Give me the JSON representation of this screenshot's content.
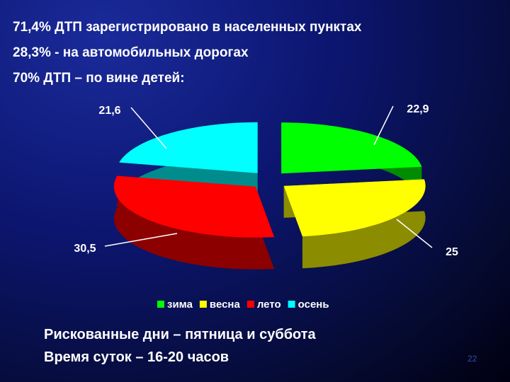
{
  "slide": {
    "lines": [
      "71,4% ДТП зарегистрировано в населенных пунктах",
      "28,3% - на автомобильных дорогах",
      "70% ДТП – по вине детей:"
    ],
    "footer_lines": [
      "Рискованные дни – пятница и суббота",
      "Время суток – 16-20 часов"
    ],
    "page_number": "22"
  },
  "chart_data": {
    "type": "pie",
    "categories": [
      "зима",
      "весна",
      "лето",
      "осень"
    ],
    "values": [
      22.9,
      25,
      30.5,
      21.6
    ],
    "value_labels": [
      "22,9",
      "25",
      "30,5",
      "21,6"
    ],
    "colors": [
      "#00ff00",
      "#ffff00",
      "#ff0000",
      "#00ffff"
    ],
    "legend": "bottom"
  }
}
